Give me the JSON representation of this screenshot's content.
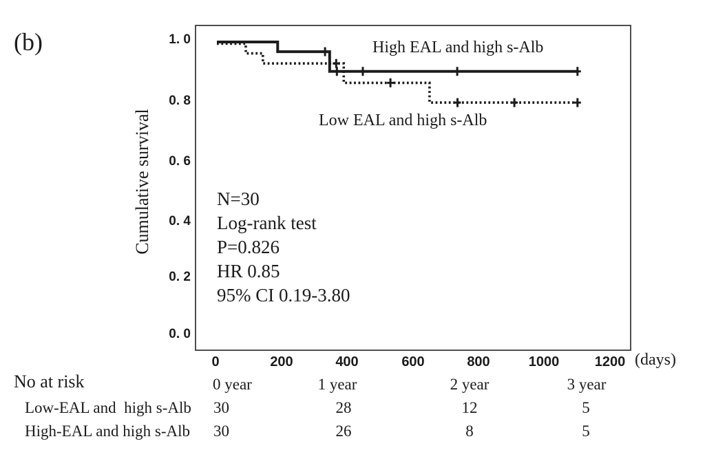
{
  "figure": {
    "panel_label": "(b)",
    "y_axis_title": "Cumulative survival",
    "x_axis_unit": "(days)",
    "ink_color": "#1c1c1c",
    "y_tick_labels": [
      "1. 0",
      "0. 8",
      "0. 6",
      "0. 4",
      "0. 2",
      "0. 0"
    ],
    "x_tick_labels": [
      "0",
      "200",
      "400",
      "600",
      "800",
      "1000",
      "1200"
    ],
    "curve_labels": {
      "solid": "High EAL and high s-Alb",
      "dotted": "Low EAL and high s-Alb"
    },
    "stats_lines": [
      "N=30",
      "Log-rank test",
      "P=0.826",
      "HR 0.85",
      "95% CI 0.19-3.80"
    ]
  },
  "risk_table": {
    "title": "No at risk",
    "columns": [
      "0 year",
      "1 year",
      "2 year",
      "3 year"
    ],
    "rows": [
      {
        "label": "Low-EAL and  high s-Alb",
        "values": [
          "30",
          "28",
          "12",
          "5"
        ]
      },
      {
        "label": "High-EAL and high s-Alb",
        "values": [
          "30",
          "26",
          "8",
          "5"
        ]
      }
    ]
  },
  "chart_data": {
    "type": "line",
    "subtype": "kaplan-meier-step",
    "title": "",
    "xlabel": "(days)",
    "ylabel": "Cumulative survival",
    "xlim": [
      0,
      1260
    ],
    "ylim": [
      0.0,
      1.0
    ],
    "x_ticks": [
      0,
      200,
      400,
      600,
      800,
      1000,
      1200
    ],
    "y_ticks": [
      1.0,
      0.8,
      0.6,
      0.4,
      0.2,
      0.0
    ],
    "end_time": 1097,
    "legend_position": "inline-annotations",
    "grid": false,
    "series": [
      {
        "name": "High EAL and high s-Alb",
        "style": "solid",
        "points": [
          [
            0,
            1.0
          ],
          [
            185,
            0.967
          ],
          [
            343,
            0.9
          ]
        ],
        "censor_marks": [
          [
            329,
            0.967
          ],
          [
            365,
            0.9
          ],
          [
            444,
            0.9
          ],
          [
            731,
            0.9
          ],
          [
            1097,
            0.9
          ]
        ]
      },
      {
        "name": "Low EAL and high s-Alb",
        "style": "dotted",
        "points": [
          [
            0,
            1.0
          ],
          [
            88,
            0.967
          ],
          [
            140,
            0.933
          ],
          [
            386,
            0.867
          ],
          [
            647,
            0.8
          ]
        ],
        "censor_marks": [
          [
            363,
            0.933
          ],
          [
            528,
            0.867
          ],
          [
            732,
            0.8
          ],
          [
            905,
            0.8
          ],
          [
            1097,
            0.8
          ]
        ]
      }
    ],
    "annotations": [
      "N=30",
      "Log-rank test",
      "P=0.826",
      "HR 0.85",
      "95% CI 0.19-3.80"
    ]
  }
}
